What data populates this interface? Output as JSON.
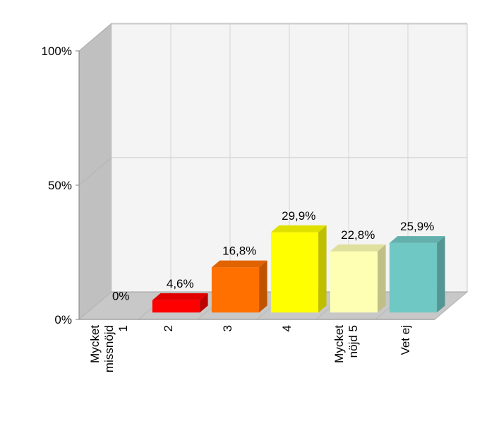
{
  "chart_data": {
    "type": "bar",
    "categories": [
      [
        "Mycket",
        "missnöjd",
        "1"
      ],
      [
        "2"
      ],
      [
        "3"
      ],
      [
        "4"
      ],
      [
        "Mycket",
        "nöjd 5"
      ],
      [
        "Vet ej"
      ]
    ],
    "values": [
      0,
      4.6,
      16.8,
      29.9,
      22.8,
      25.9
    ],
    "value_labels": [
      "0%",
      "4,6%",
      "16,8%",
      "29,9%",
      "22,8%",
      "25,9%"
    ],
    "bar_colors": [
      "#ff0000",
      "#ff0000",
      "#ff7000",
      "#ffff00",
      "#ffffb4",
      "#70c8c4"
    ],
    "ylim": [
      0,
      100
    ],
    "y_ticks": [
      {
        "value": 0,
        "label": "0%"
      },
      {
        "value": 50,
        "label": "50%"
      },
      {
        "value": 100,
        "label": "100%"
      }
    ],
    "grid": true,
    "three_d": true,
    "title": "",
    "xlabel": "",
    "ylabel": ""
  }
}
